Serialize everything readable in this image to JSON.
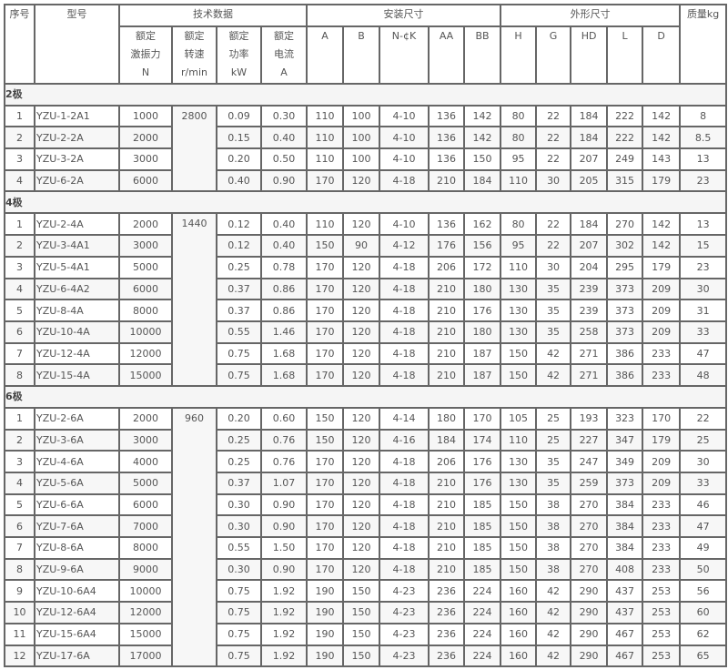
{
  "headers": {
    "seq": "序号",
    "model": "型号",
    "tech": "技术数据",
    "install": "安装尺寸",
    "outline": "外形尺寸",
    "mass": "质量kg",
    "tech_cols": [
      [
        "额定",
        "激振力",
        "N"
      ],
      [
        "额定",
        "转速",
        "r/min"
      ],
      [
        "额定",
        "功率",
        "kW"
      ],
      [
        "额定",
        "电流",
        "A"
      ]
    ],
    "install_cols": [
      "A",
      "B",
      "N-¢K",
      "AA",
      "BB"
    ],
    "outline_cols": [
      "H",
      "G",
      "HD",
      "L",
      "D"
    ]
  },
  "sections": [
    {
      "label": "2极",
      "speed": "2800",
      "rows": [
        [
          "1",
          "YZU-1-2A1",
          "1000",
          "0.09",
          "0.30",
          "110",
          "100",
          "4-10",
          "136",
          "142",
          "80",
          "22",
          "184",
          "222",
          "142",
          "8"
        ],
        [
          "2",
          "YZU-2-2A",
          "2000",
          "0.15",
          "0.40",
          "110",
          "100",
          "4-10",
          "136",
          "142",
          "80",
          "22",
          "184",
          "222",
          "142",
          "8.5"
        ],
        [
          "3",
          "YZU-3-2A",
          "3000",
          "0.20",
          "0.50",
          "110",
          "100",
          "4-10",
          "136",
          "150",
          "95",
          "22",
          "207",
          "249",
          "143",
          "13"
        ],
        [
          "4",
          "YZU-6-2A",
          "6000",
          "0.40",
          "0.90",
          "170",
          "120",
          "4-18",
          "210",
          "184",
          "110",
          "30",
          "205",
          "315",
          "179",
          "23"
        ]
      ]
    },
    {
      "label": "4极",
      "speed": "1440",
      "rows": [
        [
          "1",
          "YZU-2-4A",
          "2000",
          "0.12",
          "0.40",
          "110",
          "120",
          "4-10",
          "136",
          "162",
          "80",
          "22",
          "184",
          "270",
          "142",
          "13"
        ],
        [
          "2",
          "YZU-3-4A1",
          "3000",
          "0.12",
          "0.40",
          "150",
          "90",
          "4-12",
          "176",
          "156",
          "95",
          "22",
          "207",
          "302",
          "142",
          "15"
        ],
        [
          "3",
          "YZU-5-4A1",
          "5000",
          "0.25",
          "0.78",
          "170",
          "120",
          "4-18",
          "206",
          "172",
          "110",
          "30",
          "204",
          "295",
          "179",
          "23"
        ],
        [
          "4",
          "YZU-6-4A2",
          "6000",
          "0.37",
          "0.86",
          "170",
          "120",
          "4-18",
          "210",
          "180",
          "130",
          "35",
          "239",
          "373",
          "209",
          "30"
        ],
        [
          "5",
          "YZU-8-4A",
          "8000",
          "0.37",
          "0.86",
          "170",
          "120",
          "4-18",
          "210",
          "176",
          "130",
          "35",
          "239",
          "373",
          "209",
          "31"
        ],
        [
          "6",
          "YZU-10-4A",
          "10000",
          "0.55",
          "1.46",
          "170",
          "120",
          "4-18",
          "210",
          "180",
          "130",
          "35",
          "258",
          "373",
          "209",
          "33"
        ],
        [
          "7",
          "YZU-12-4A",
          "12000",
          "0.75",
          "1.68",
          "170",
          "120",
          "4-18",
          "210",
          "187",
          "150",
          "42",
          "271",
          "386",
          "233",
          "47"
        ],
        [
          "8",
          "YZU-15-4A",
          "15000",
          "0.75",
          "1.68",
          "170",
          "120",
          "4-18",
          "210",
          "187",
          "150",
          "42",
          "271",
          "386",
          "233",
          "48"
        ]
      ]
    },
    {
      "label": "6极",
      "speed": "960",
      "rows": [
        [
          "1",
          "YZU-2-6A",
          "2000",
          "0.20",
          "0.60",
          "150",
          "120",
          "4-14",
          "180",
          "170",
          "105",
          "25",
          "193",
          "323",
          "170",
          "22"
        ],
        [
          "2",
          "YZU-3-6A",
          "3000",
          "0.25",
          "0.76",
          "150",
          "120",
          "4-16",
          "184",
          "174",
          "110",
          "25",
          "227",
          "347",
          "179",
          "25"
        ],
        [
          "3",
          "YZU-4-6A",
          "4000",
          "0.25",
          "0.76",
          "170",
          "120",
          "4-18",
          "206",
          "176",
          "130",
          "35",
          "247",
          "349",
          "209",
          "30"
        ],
        [
          "4",
          "YZU-5-6A",
          "5000",
          "0.37",
          "1.07",
          "170",
          "120",
          "4-18",
          "210",
          "176",
          "130",
          "35",
          "259",
          "373",
          "209",
          "33"
        ],
        [
          "5",
          "YZU-6-6A",
          "6000",
          "0.30",
          "0.90",
          "170",
          "120",
          "4-18",
          "210",
          "185",
          "150",
          "38",
          "270",
          "384",
          "233",
          "46"
        ],
        [
          "6",
          "YZU-7-6A",
          "7000",
          "0.30",
          "0.90",
          "170",
          "120",
          "4-18",
          "210",
          "185",
          "150",
          "38",
          "270",
          "384",
          "233",
          "47"
        ],
        [
          "7",
          "YZU-8-6A",
          "8000",
          "0.55",
          "1.50",
          "170",
          "120",
          "4-18",
          "210",
          "185",
          "150",
          "38",
          "270",
          "384",
          "233",
          "49"
        ],
        [
          "8",
          "YZU-9-6A",
          "9000",
          "0.30",
          "0.90",
          "170",
          "120",
          "4-18",
          "210",
          "185",
          "150",
          "38",
          "270",
          "408",
          "233",
          "50"
        ],
        [
          "9",
          "YZU-10-6A4",
          "10000",
          "0.75",
          "1.92",
          "190",
          "150",
          "4-23",
          "236",
          "224",
          "160",
          "42",
          "290",
          "437",
          "253",
          "56"
        ],
        [
          "10",
          "YZU-12-6A4",
          "12000",
          "0.75",
          "1.92",
          "190",
          "150",
          "4-23",
          "236",
          "224",
          "160",
          "42",
          "290",
          "437",
          "253",
          "60"
        ],
        [
          "11",
          "YZU-15-6A4",
          "15000",
          "0.75",
          "1.92",
          "190",
          "150",
          "4-23",
          "236",
          "224",
          "160",
          "42",
          "290",
          "467",
          "253",
          "62"
        ],
        [
          "12",
          "YZU-17-6A",
          "17000",
          "0.75",
          "1.92",
          "190",
          "150",
          "4-23",
          "236",
          "224",
          "160",
          "42",
          "290",
          "467",
          "253",
          "65"
        ]
      ]
    }
  ]
}
